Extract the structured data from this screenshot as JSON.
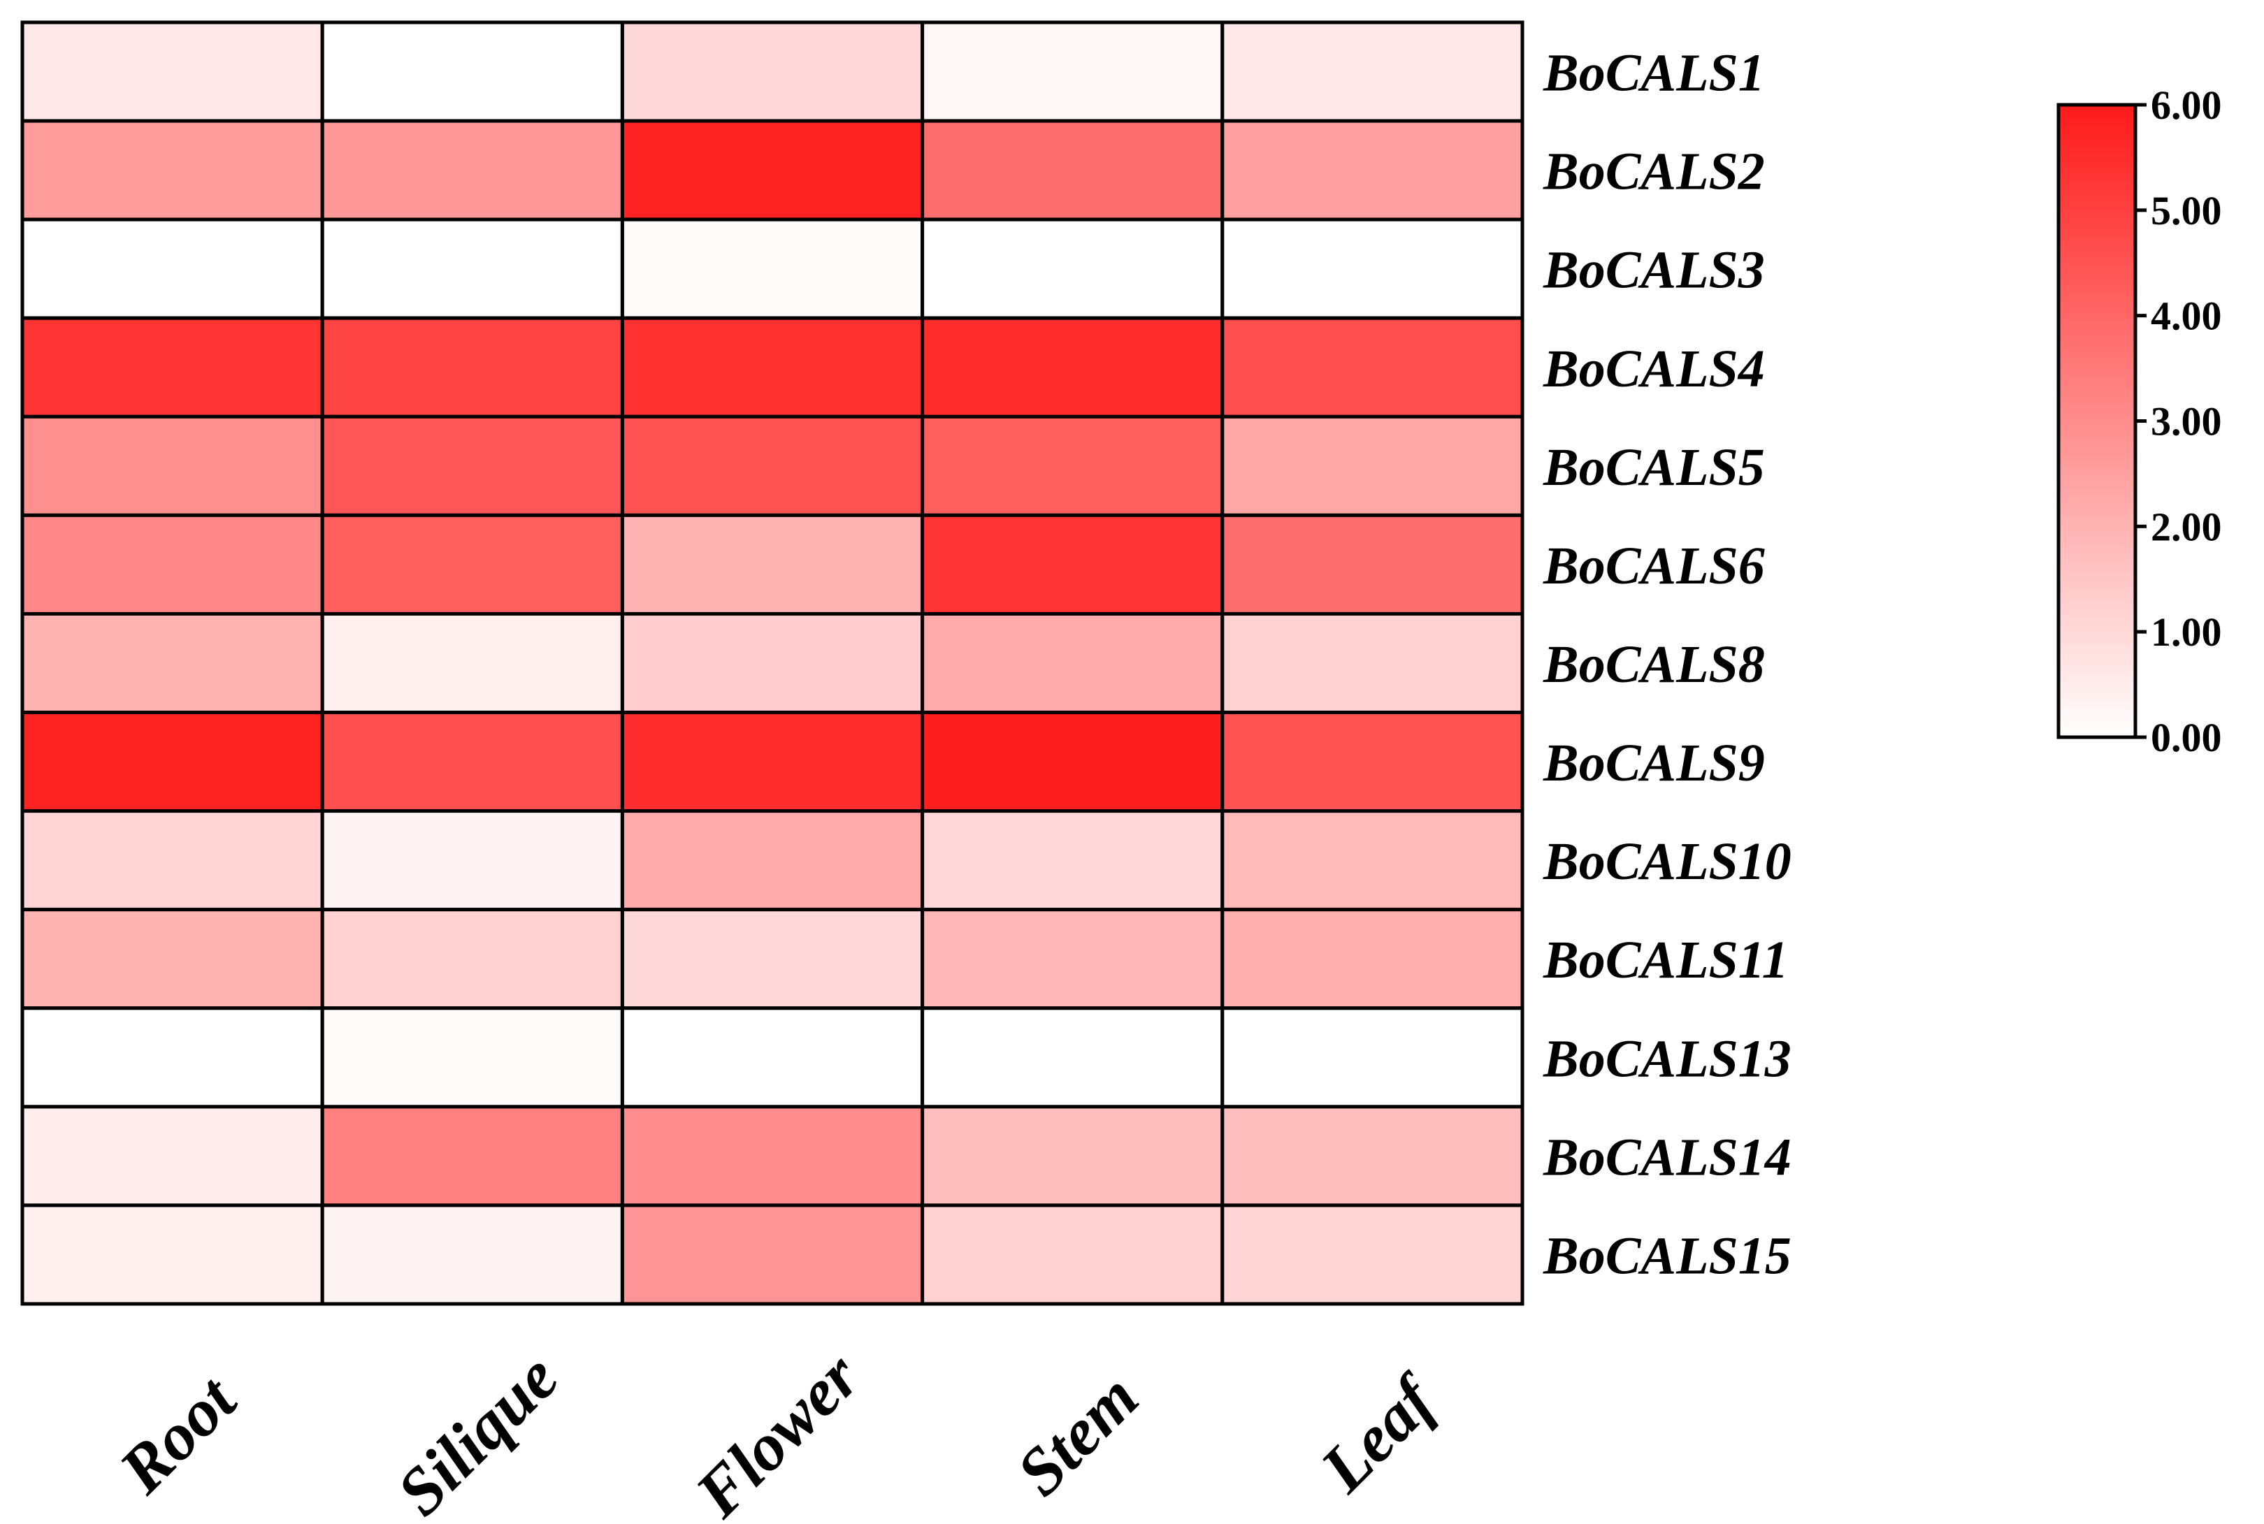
{
  "chart_data": {
    "type": "heatmap",
    "title": "",
    "xlabel": "",
    "ylabel": "",
    "columns": [
      "Root",
      "Silique",
      "Flower",
      "Stem",
      "Leaf"
    ],
    "rows": [
      "BoCALS1",
      "BoCALS2",
      "BoCALS3",
      "BoCALS4",
      "BoCALS5",
      "BoCALS6",
      "BoCALS8",
      "BoCALS9",
      "BoCALS10",
      "BoCALS11",
      "BoCALS13",
      "BoCALS14",
      "BoCALS15"
    ],
    "values": [
      [
        0.6,
        0.0,
        1.0,
        0.2,
        0.6
      ],
      [
        2.6,
        2.7,
        5.8,
        3.8,
        2.5
      ],
      [
        0.0,
        0.0,
        0.1,
        0.0,
        0.0
      ],
      [
        5.3,
        4.9,
        5.4,
        5.5,
        4.6
      ],
      [
        2.9,
        4.4,
        4.5,
        4.2,
        2.3
      ],
      [
        3.1,
        4.2,
        2.0,
        5.3,
        3.8
      ],
      [
        2.0,
        0.4,
        1.3,
        2.2,
        1.2
      ],
      [
        5.8,
        4.6,
        5.5,
        5.9,
        4.5
      ],
      [
        1.1,
        0.3,
        2.2,
        1.0,
        1.8
      ],
      [
        2.0,
        1.2,
        1.0,
        1.9,
        2.1
      ],
      [
        0.0,
        0.1,
        0.0,
        0.0,
        0.0
      ],
      [
        0.5,
        3.3,
        3.0,
        1.7,
        1.7
      ],
      [
        0.4,
        0.3,
        2.8,
        1.2,
        1.1
      ]
    ],
    "colorbar": {
      "min": 0,
      "max": 6,
      "ticks": [
        "0.00",
        "1.00",
        "2.00",
        "3.00",
        "4.00",
        "5.00",
        "6.00"
      ],
      "color_low": "#ffffff",
      "color_high": "#ff1a1a",
      "placement": "right"
    },
    "grid_line_color": "#000000"
  }
}
